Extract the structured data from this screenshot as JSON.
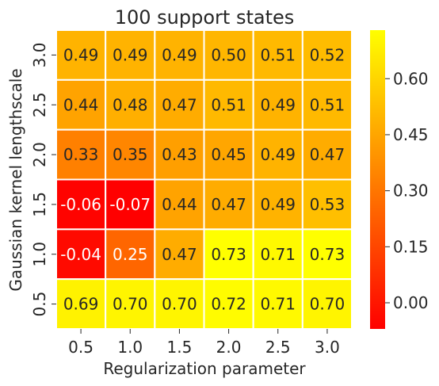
{
  "chart_data": {
    "type": "heatmap",
    "title": "100 support states",
    "xlabel": "Regularization parameter",
    "ylabel": "Gaussian kernel lengthscale",
    "x_categories": [
      "0.5",
      "1.0",
      "1.5",
      "2.0",
      "2.5",
      "3.0"
    ],
    "y_categories": [
      "3.0",
      "2.5",
      "2.0",
      "1.5",
      "1.0",
      "0.5"
    ],
    "values": [
      [
        0.49,
        0.49,
        0.49,
        0.5,
        0.51,
        0.52
      ],
      [
        0.44,
        0.48,
        0.47,
        0.51,
        0.49,
        0.51
      ],
      [
        0.33,
        0.35,
        0.43,
        0.45,
        0.49,
        0.47
      ],
      [
        -0.06,
        -0.07,
        0.44,
        0.47,
        0.49,
        0.53
      ],
      [
        -0.04,
        0.25,
        0.47,
        0.73,
        0.71,
        0.73
      ],
      [
        0.69,
        0.7,
        0.7,
        0.72,
        0.71,
        0.7
      ]
    ],
    "value_labels": [
      [
        "0.49",
        "0.49",
        "0.49",
        "0.50",
        "0.51",
        "0.52"
      ],
      [
        "0.44",
        "0.48",
        "0.47",
        "0.51",
        "0.49",
        "0.51"
      ],
      [
        "0.33",
        "0.35",
        "0.43",
        "0.45",
        "0.49",
        "0.47"
      ],
      [
        "-0.06",
        "-0.07",
        "0.44",
        "0.47",
        "0.49",
        "0.53"
      ],
      [
        "-0.04",
        "0.25",
        "0.47",
        "0.73",
        "0.71",
        "0.73"
      ],
      [
        "0.69",
        "0.70",
        "0.70",
        "0.72",
        "0.71",
        "0.70"
      ]
    ],
    "colormap": "autumn",
    "vmin": -0.07,
    "vmax": 0.73,
    "colorbar_ticks": [
      0.0,
      0.15,
      0.3,
      0.45,
      0.6
    ],
    "colorbar_tick_labels": [
      "0.00",
      "0.15",
      "0.30",
      "0.45",
      "0.60"
    ],
    "grid": true,
    "cell_border_color": "#ffffff",
    "colors": {
      "low": "#ff0000",
      "high": "#ffff00",
      "text_dark": "#262626",
      "text_light": "#ffffff"
    }
  }
}
